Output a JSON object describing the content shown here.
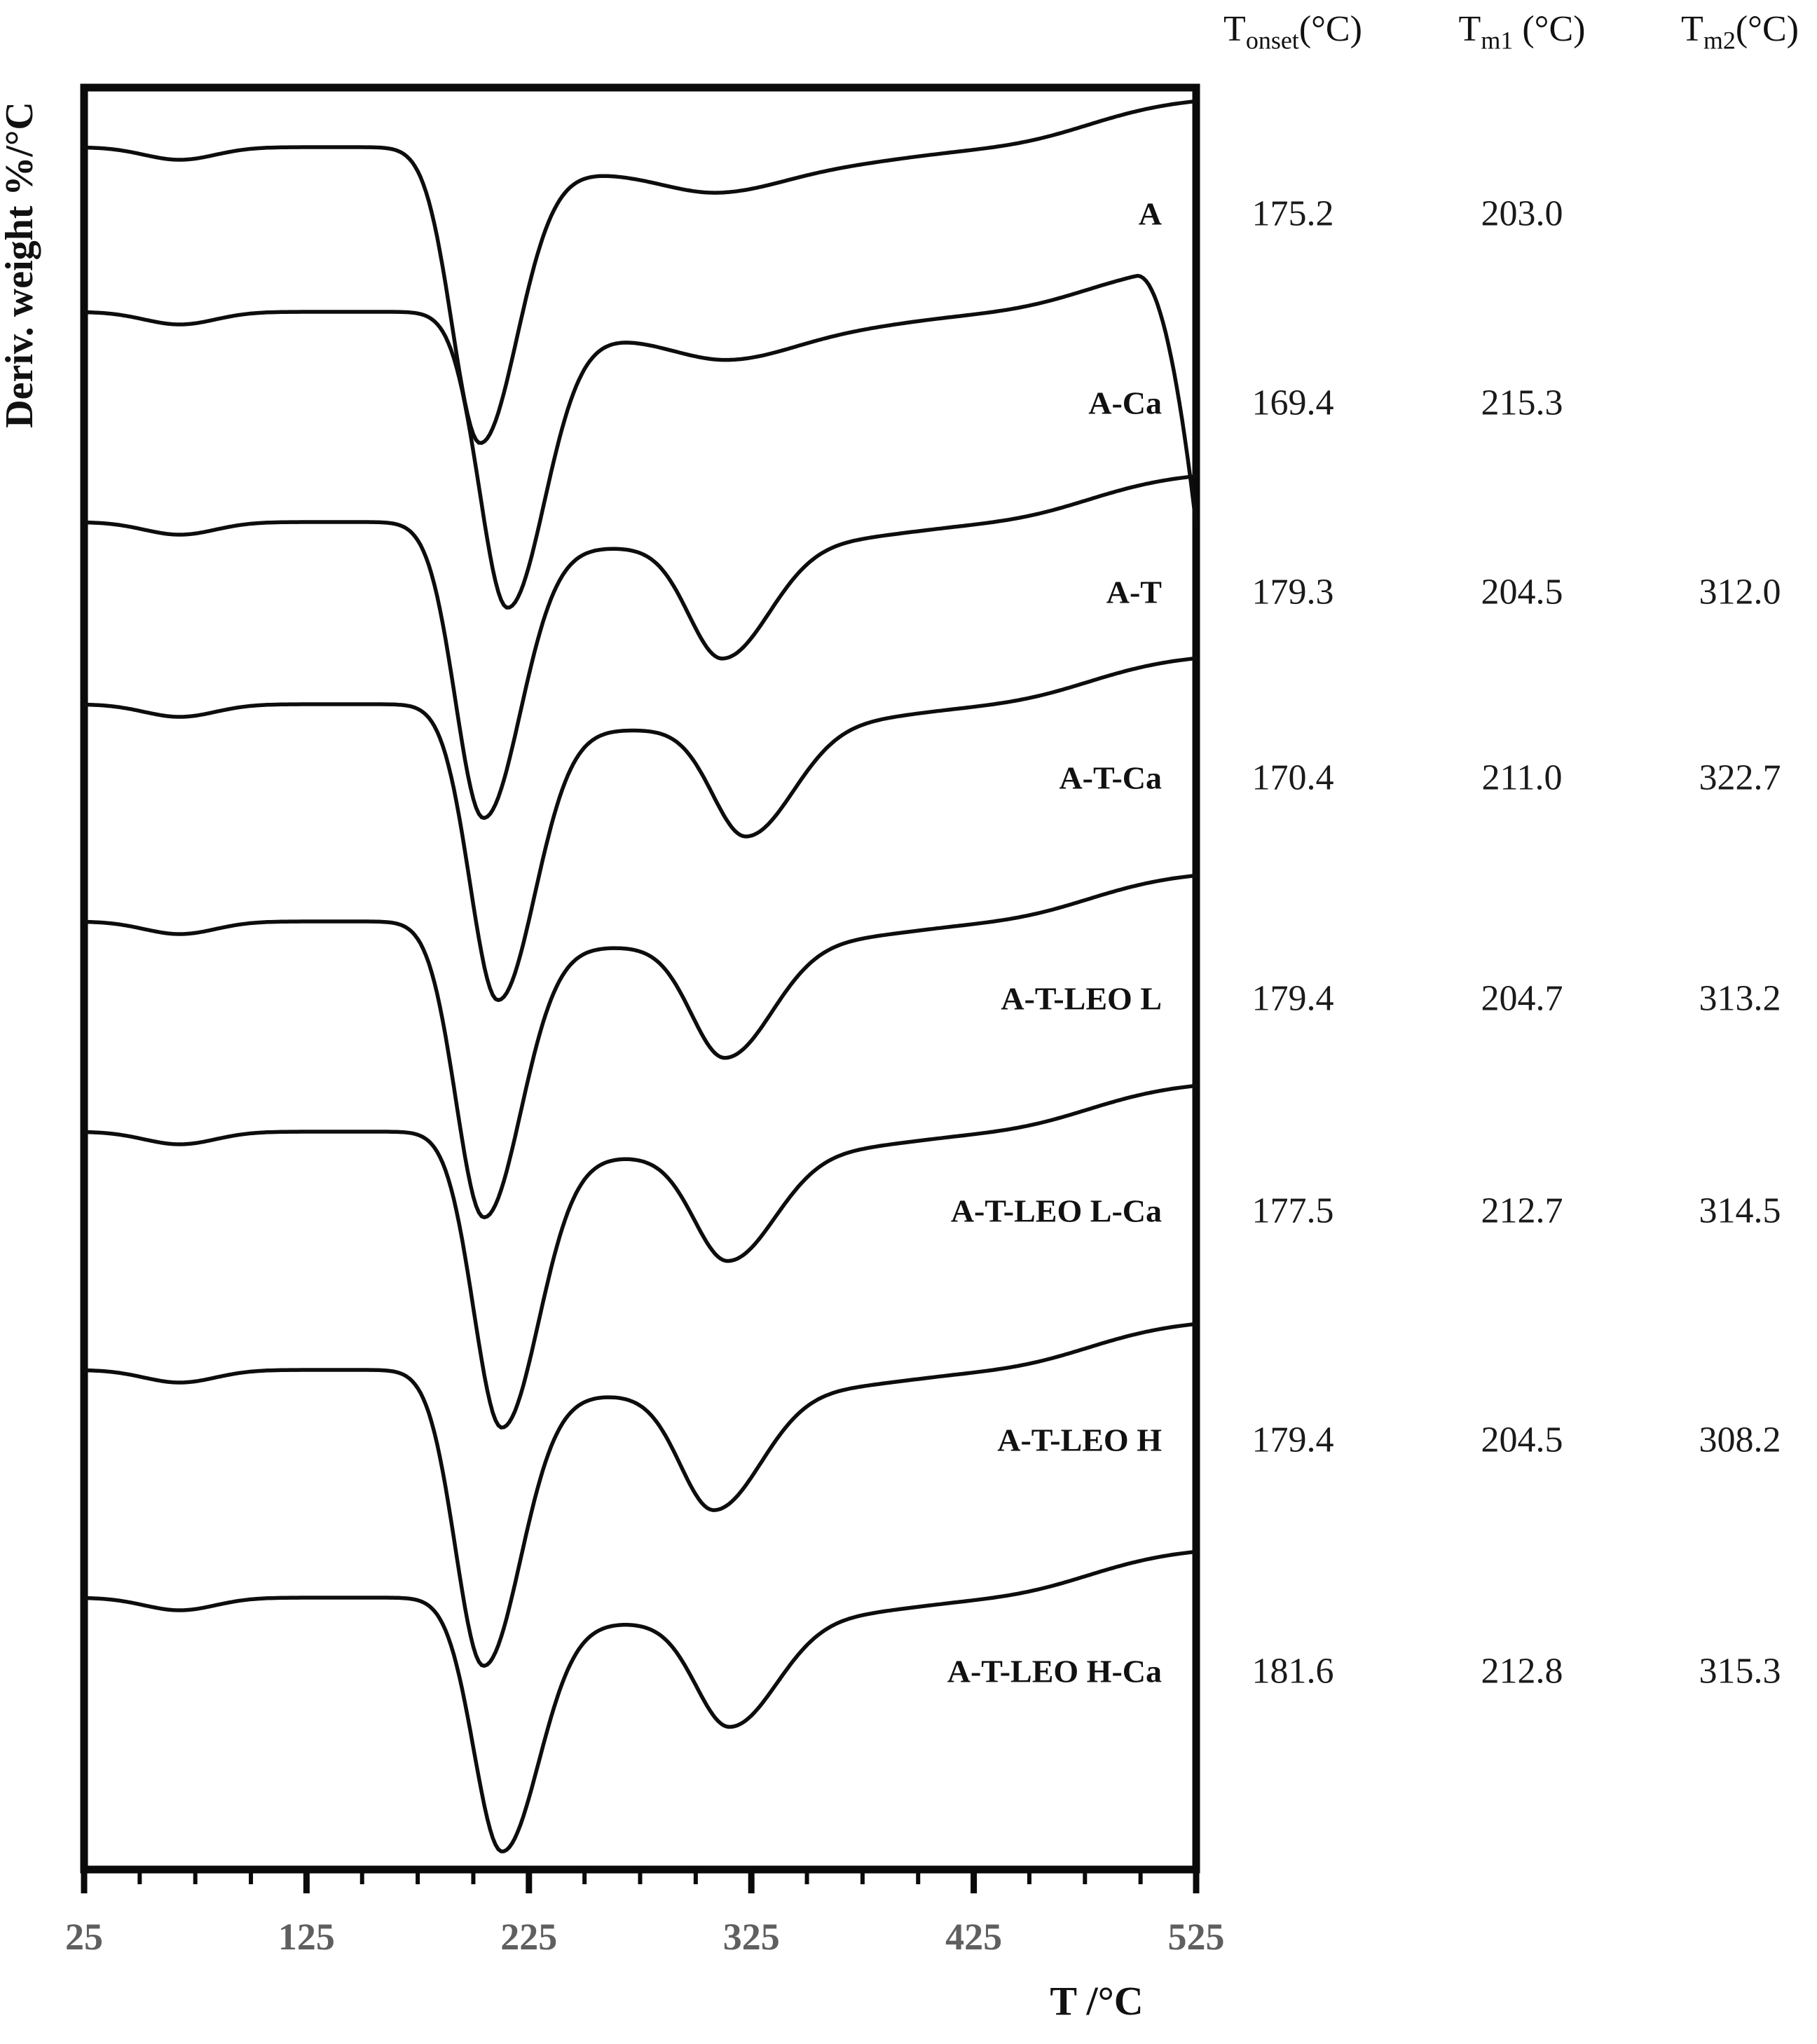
{
  "figure": {
    "xlabel": "T /°C",
    "ylabel": "Deriv. weight %/°C"
  },
  "table": {
    "columns": [
      {
        "base": "T",
        "sub": "onset",
        "unit": "(°C)"
      },
      {
        "base": "T",
        "sub": "m1",
        "unit": " (°C)"
      },
      {
        "base": "T",
        "sub": "m2",
        "unit": "(°C)"
      }
    ]
  },
  "chart_data": {
    "type": "line",
    "title": "",
    "xlabel": "T /°C",
    "ylabel": "Deriv. weight %/°C",
    "xlim": [
      25,
      525
    ],
    "x_major_ticks": [
      25,
      125,
      225,
      325,
      425,
      525
    ],
    "x_minor_step": 25,
    "grid": false,
    "legend_position": "labels-inside-right",
    "description": "Stacked DTG curves (derivative weight loss vs temperature) for eight samples; each curve shows a small moisture-loss dip near 65 C, a sharp main decomposition valley at Tm1, and (for A-T samples) a second valley at Tm2. A-Ca additionally falls steeply near 510-525 C.",
    "series": [
      {
        "name": "A",
        "tonset": "175.2",
        "tm1": "203.0",
        "tm2": "",
        "tm1_num": 203.0,
        "tm2_num": 310,
        "peak1_depth": 420,
        "peak2_depth": 30,
        "end_plunge": 0
      },
      {
        "name": "A-Ca",
        "tonset": "169.4",
        "tm1": "215.3",
        "tm2": "",
        "tm1_num": 215.3,
        "tm2_num": 315,
        "peak1_depth": 420,
        "peak2_depth": 34,
        "end_plunge": 370
      },
      {
        "name": "A-T",
        "tonset": "179.3",
        "tm1": "204.5",
        "tm2": "312.0",
        "tm1_num": 204.5,
        "tm2_num": 312.0,
        "peak1_depth": 420,
        "peak2_depth": 160,
        "end_plunge": 0
      },
      {
        "name": "A-T-Ca",
        "tonset": "170.4",
        "tm1": "211.0",
        "tm2": "322.7",
        "tm1_num": 211.0,
        "tm2_num": 322.7,
        "peak1_depth": 420,
        "peak2_depth": 155,
        "end_plunge": 0
      },
      {
        "name": "A-T-LEO L",
        "tonset": "179.4",
        "tm1": "204.7",
        "tm2": "313.2",
        "tm1_num": 204.7,
        "tm2_num": 313.2,
        "peak1_depth": 420,
        "peak2_depth": 160,
        "end_plunge": 0
      },
      {
        "name": "A-T-LEO L-Ca",
        "tonset": "177.5",
        "tm1": "212.7",
        "tm2": "314.5",
        "tm1_num": 212.7,
        "tm2_num": 314.5,
        "peak1_depth": 420,
        "peak2_depth": 150,
        "end_plunge": 0
      },
      {
        "name": "A-T-LEO H",
        "tonset": "179.4",
        "tm1": "204.5",
        "tm2": "308.2",
        "tm1_num": 204.5,
        "tm2_num": 308.2,
        "peak1_depth": 420,
        "peak2_depth": 165,
        "end_plunge": 0
      },
      {
        "name": "A-T-LEO H-Ca",
        "tonset": "181.6",
        "tm1": "212.8",
        "tm2": "315.3",
        "tm1_num": 212.8,
        "tm2_num": 315.3,
        "peak1_depth": 360,
        "peak2_depth": 150,
        "end_plunge": 0
      }
    ]
  }
}
